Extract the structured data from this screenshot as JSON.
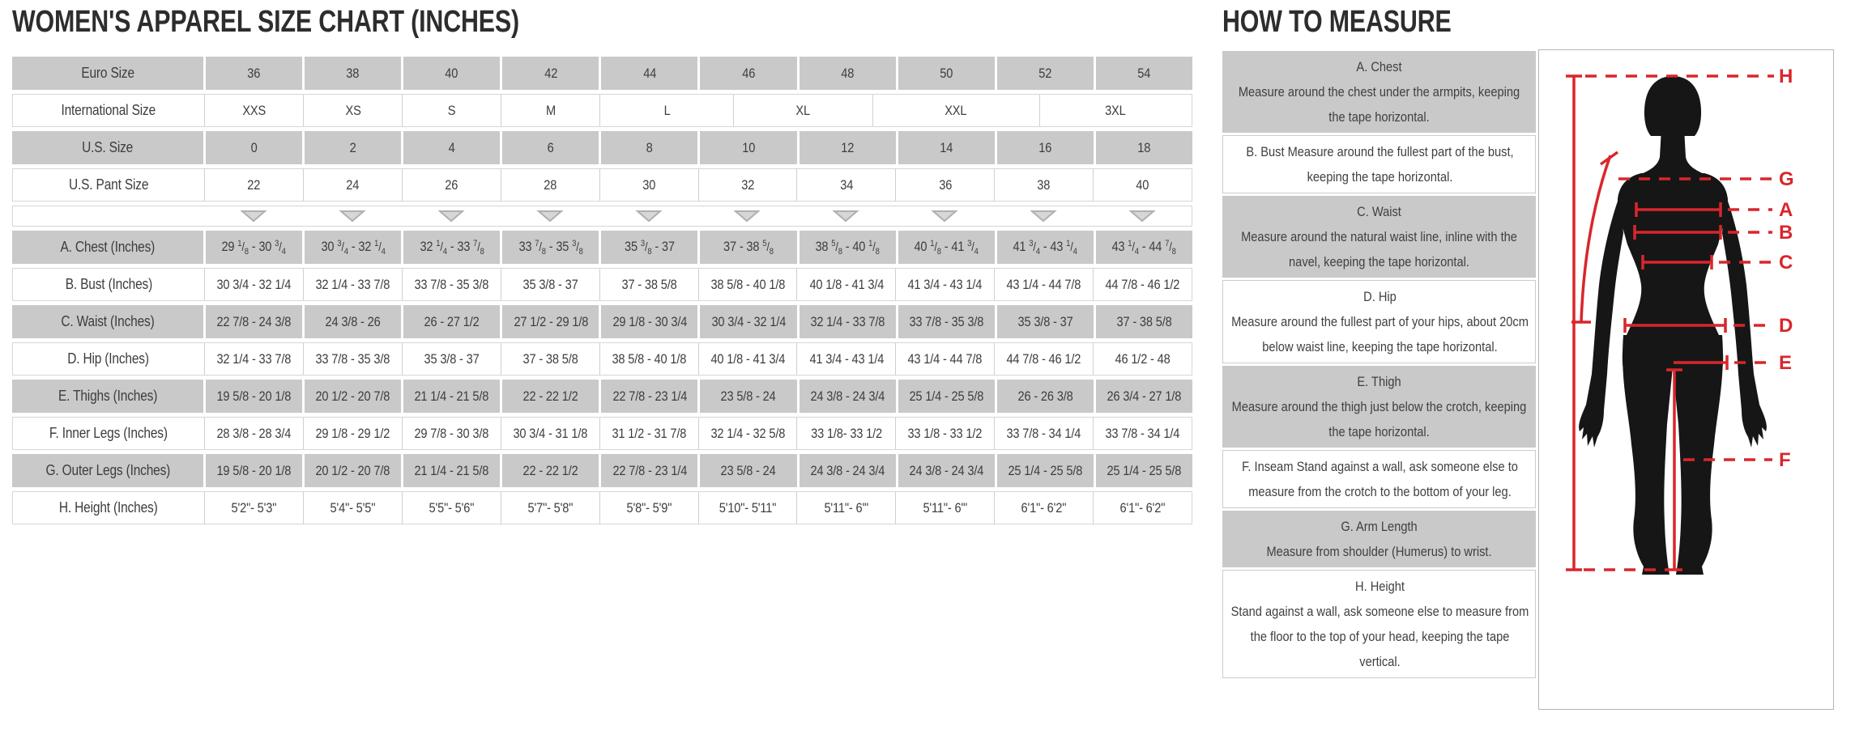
{
  "size_chart": {
    "title": "WOMEN'S APPAREL SIZE CHART (INCHES)",
    "rows": [
      {
        "label": "Euro Size",
        "shade": "gray",
        "cells": [
          "36",
          "38",
          "40",
          "42",
          "44",
          "46",
          "48",
          "50",
          "52",
          "54"
        ]
      },
      {
        "label": "International Size",
        "shade": "white",
        "cells": [
          "XXS",
          "XS",
          "S",
          "M",
          "L",
          "XL",
          "XXL",
          "3XL"
        ],
        "widths": [
          1,
          1,
          1,
          1,
          1.353,
          1.41,
          1.689,
          1.548
        ]
      },
      {
        "label": "U.S. Size",
        "shade": "gray",
        "cells": [
          "0",
          "2",
          "4",
          "6",
          "8",
          "10",
          "12",
          "14",
          "16",
          "18"
        ]
      },
      {
        "label": "U.S. Pant Size",
        "shade": "white",
        "cells": [
          "22",
          "24",
          "26",
          "28",
          "30",
          "32",
          "34",
          "36",
          "38",
          "40"
        ]
      },
      {
        "label": "",
        "type": "arrows",
        "shade": "arrows",
        "arrow_count": 10
      },
      {
        "label": "A. Chest (Inches)",
        "shade": "gray",
        "frac": true,
        "cells": [
          "29 1/8 - 30 3/4",
          "30 3/4 - 32 1/4",
          "32 1/4 - 33 7/8",
          "33 7/8 - 35 3/8",
          "35 3/8 - 37",
          "37 - 38 5/8",
          "38 5/8 - 40 1/8",
          "40 1/8 - 41 3/4",
          "41 3/4 - 43 1/4",
          "43 1/4 - 44 7/8"
        ]
      },
      {
        "label": "B. Bust (Inches)",
        "shade": "white",
        "cells": [
          "30 3/4 - 32 1/4",
          "32 1/4 - 33 7/8",
          "33 7/8 - 35 3/8",
          "35 3/8 - 37",
          "37 - 38 5/8",
          "38 5/8 - 40 1/8",
          "40 1/8 - 41 3/4",
          "41 3/4 - 43 1/4",
          "43 1/4 - 44 7/8",
          "44 7/8 - 46 1/2"
        ]
      },
      {
        "label": "C. Waist (Inches)",
        "shade": "gray",
        "cells": [
          "22 7/8 - 24 3/8",
          "24 3/8 - 26",
          "26 - 27 1/2",
          "27 1/2 - 29 1/8",
          "29 1/8 - 30 3/4",
          "30 3/4 - 32 1/4",
          "32 1/4 - 33 7/8",
          "33 7/8 - 35 3/8",
          "35 3/8 - 37",
          "37 - 38 5/8"
        ]
      },
      {
        "label": "D. Hip (Inches)",
        "shade": "white",
        "cells": [
          "32 1/4 - 33 7/8",
          "33 7/8 - 35 3/8",
          "35 3/8 - 37",
          "37 - 38 5/8",
          "38 5/8 - 40 1/8",
          "40 1/8 - 41 3/4",
          "41 3/4 - 43 1/4",
          "43 1/4 - 44 7/8",
          "44 7/8 - 46 1/2",
          "46 1/2 - 48"
        ]
      },
      {
        "label": "E. Thighs (Inches)",
        "shade": "gray",
        "cells": [
          "19 5/8 - 20 1/8",
          "20 1/2 - 20 7/8",
          "21 1/4 - 21 5/8",
          "22 - 22 1/2",
          "22 7/8 - 23 1/4",
          "23 5/8 - 24",
          "24 3/8 - 24 3/4",
          "25 1/4 - 25 5/8",
          "26 - 26 3/8",
          "26 3/4 - 27 1/8"
        ]
      },
      {
        "label": "F. Inner Legs (Inches)",
        "shade": "white",
        "cells": [
          "28 3/8 - 28 3/4",
          "29 1/8 - 29 1/2",
          "29 7/8 - 30 3/8",
          "30 3/4 - 31 1/8",
          "31 1/2 - 31 7/8",
          "32 1/4 - 32 5/8",
          "33 1/8- 33 1/2",
          "33 1/8 - 33 1/2",
          "33 7/8 - 34 1/4",
          "33 7/8 - 34 1/4"
        ]
      },
      {
        "label": "G. Outer Legs (Inches)",
        "shade": "gray",
        "cells": [
          "19 5/8 - 20 1/8",
          "20 1/2 - 20 7/8",
          "21 1/4 - 21 5/8",
          "22 - 22 1/2",
          "22 7/8 - 23 1/4",
          "23 5/8 - 24",
          "24 3/8 - 24 3/4",
          "24 3/8 - 24 3/4",
          "25 1/4 - 25 5/8",
          "25 1/4 - 25 5/8"
        ]
      },
      {
        "label": "H. Height (Inches)",
        "shade": "white",
        "cells": [
          "5'2\"- 5'3\"",
          "5'4\"- 5'5\"",
          "5'5\"- 5'6\"",
          "5'7\"- 5'8\"",
          "5'8\"- 5'9\"",
          "5'10\"- 5'11\"",
          "5'11\"- 6'\"",
          "5'11\"- 6'\"",
          "6'1\"- 6'2\"",
          "6'1\"- 6'2\""
        ]
      }
    ]
  },
  "how_to_measure": {
    "title": "HOW TO MEASURE",
    "items": [
      {
        "heading": "A. Chest",
        "text": "Measure around the chest under the armpits, keeping the tape horizontal.",
        "shade": "gray"
      },
      {
        "heading": "",
        "text": "B. Bust Measure around the fullest part of the bust, keeping the tape horizontal.",
        "shade": "white"
      },
      {
        "heading": "C. Waist",
        "text": "Measure around the natural waist line, inline with the navel, keeping the tape horizontal.",
        "shade": "gray"
      },
      {
        "heading": "D. Hip",
        "text": "Measure around the fullest part of your hips, about 20cm below waist line, keeping the tape horizontal.",
        "shade": "white"
      },
      {
        "heading": "E. Thigh",
        "text": "Measure around the thigh just below the crotch, keeping the tape horizontal.",
        "shade": "gray"
      },
      {
        "heading": "",
        "text": "F. Inseam Stand against a wall, ask someone else to measure from the crotch to the bottom of your leg.",
        "shade": "white"
      },
      {
        "heading": "G. Arm Length",
        "text": "Measure from shoulder (Humerus) to wrist.",
        "shade": "gray"
      },
      {
        "heading": "H. Height",
        "text": "Stand against a wall, ask someone else to measure from the floor to the top of your head, keeping the tape vertical.",
        "shade": "white"
      }
    ],
    "diagram_labels": [
      "H",
      "G",
      "A",
      "B",
      "C",
      "D",
      "E",
      "F"
    ]
  },
  "colors": {
    "row_gray": "#c9c9c9",
    "accent_red": "#d9262b",
    "text": "#3d3d3d",
    "silhouette": "#161616",
    "arrow_fill": "#d7d7d7",
    "arrow_stroke": "#b0b0b0"
  }
}
